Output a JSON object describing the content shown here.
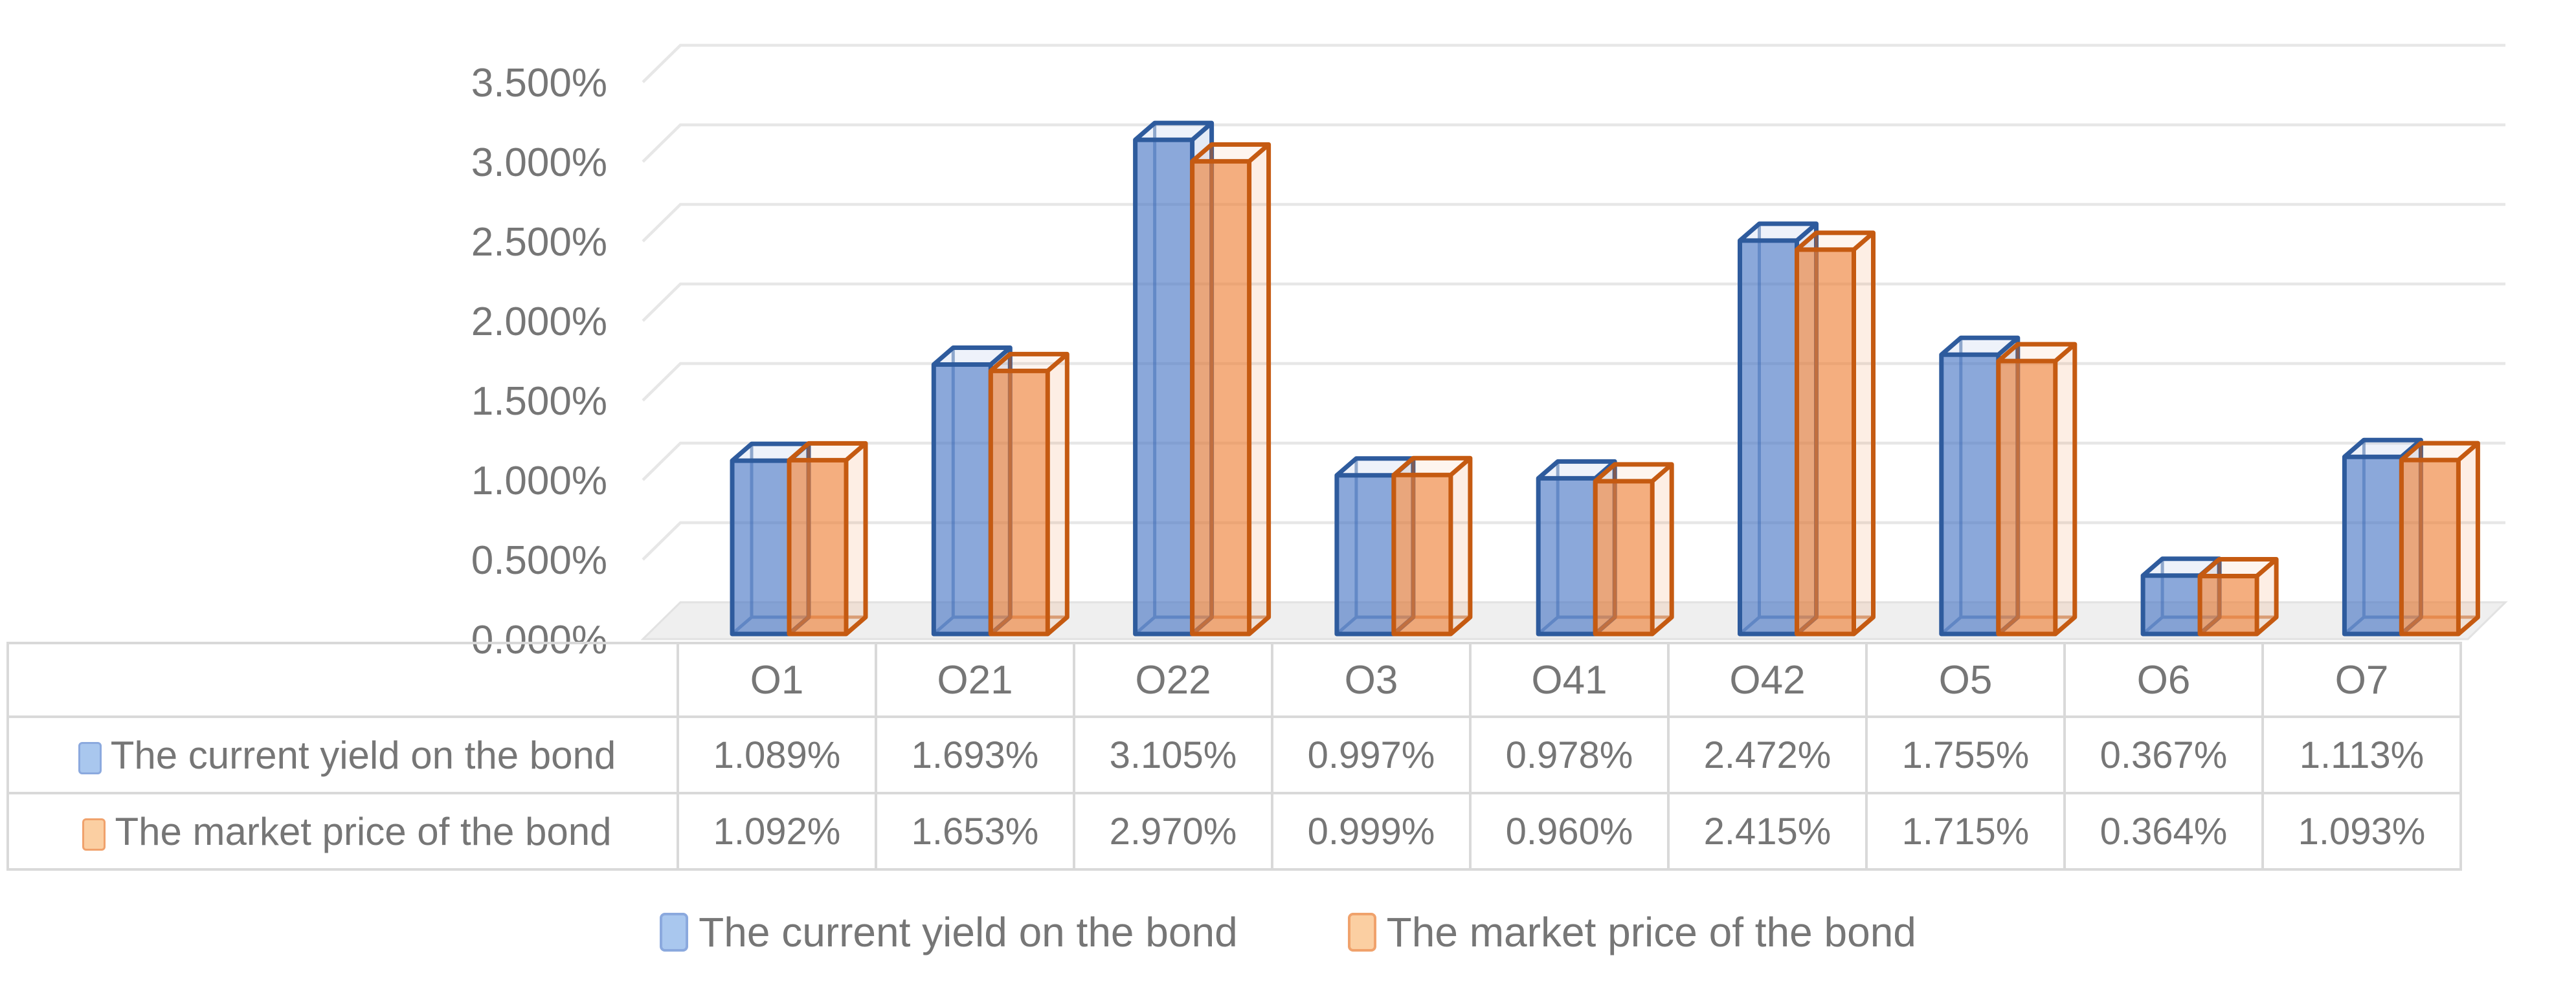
{
  "chart_data": {
    "type": "bar",
    "variant": "3d-clustered-column",
    "title": "",
    "xlabel": "",
    "ylabel": "",
    "categories": [
      "O1",
      "O21",
      "O22",
      "O3",
      "O41",
      "O42",
      "O5",
      "O6",
      "O7"
    ],
    "series": [
      {
        "name": "The current yield on the bond",
        "values": [
          1.089,
          1.693,
          3.105,
          0.997,
          0.978,
          2.472,
          1.755,
          0.367,
          1.113
        ],
        "style": {
          "outline": "#2E5B9D",
          "front": "rgba(68,114,196,0.62)",
          "top": "rgba(68,114,196,0.09)",
          "side": "rgba(68,114,196,0.15)",
          "swatch_fill": "#A9C7EE",
          "swatch_border": "#8BA9DE"
        }
      },
      {
        "name": "The market price of the bond",
        "values": [
          1.092,
          1.653,
          2.97,
          0.999,
          0.96,
          2.415,
          1.715,
          0.364,
          1.093
        ],
        "style": {
          "outline": "#C55A11",
          "front": "rgba(237,125,49,0.62)",
          "top": "rgba(237,125,49,0.08)",
          "side": "rgba(237,125,49,0.13)",
          "swatch_fill": "#FBCFA2",
          "swatch_border": "#F0A26C"
        }
      }
    ],
    "ylim": [
      0,
      3.5
    ],
    "ytick_step": 0.5,
    "yticks": [
      "0.000%",
      "0.500%",
      "1.000%",
      "1.500%",
      "2.000%",
      "2.500%",
      "3.000%",
      "3.500%"
    ],
    "value_format": "0.000%",
    "grid": true,
    "legend_position": "bottom",
    "data_table_shown": true
  },
  "colors": {
    "background": "#FFFFFF",
    "axis_text": "#767676",
    "table_text": "#767676",
    "gridline": "#E7E7E7",
    "floor_fill": "#EFEFEF",
    "floor_edge": "#E2E2E2",
    "table_border": "#D9D9D9"
  }
}
